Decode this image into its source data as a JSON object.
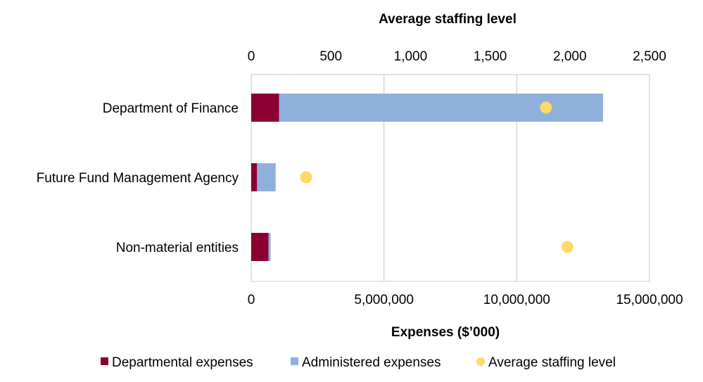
{
  "chart_data": {
    "type": "bar",
    "orientation": "horizontal",
    "stacked": true,
    "categories": [
      "Department of Finance",
      "Future Fund Management Agency",
      "Non-material entities"
    ],
    "series": [
      {
        "name": "Departmental expenses",
        "axis": "bottom",
        "color": "#8B0030",
        "values": [
          1050000,
          220000,
          650000
        ]
      },
      {
        "name": "Administered expenses",
        "axis": "bottom",
        "color": "#8FB0DA",
        "values": [
          12200000,
          700000,
          80000
        ]
      }
    ],
    "scatter_series": {
      "name": "Average staffing level",
      "axis": "top",
      "color": "#FFD966",
      "values": [
        1850,
        345,
        1985
      ]
    },
    "x_bottom": {
      "label": "Expenses ($’000)",
      "range": [
        0,
        15000000
      ],
      "ticks": [
        0,
        5000000,
        10000000,
        15000000
      ],
      "tick_labels": [
        "0",
        "5,000,000",
        "10,000,000",
        "15,000,000"
      ]
    },
    "x_top": {
      "label": "Average staffing level",
      "range": [
        0,
        2500
      ],
      "ticks": [
        0,
        500,
        1000,
        1500,
        2000,
        2500
      ],
      "tick_labels": [
        "0",
        "500",
        "1,000",
        "1,500",
        "2,000",
        "2,500"
      ]
    },
    "grid": true,
    "legend_position": "bottom",
    "legend": [
      "Departmental expenses",
      "Administered expenses",
      "Average staffing level"
    ]
  }
}
